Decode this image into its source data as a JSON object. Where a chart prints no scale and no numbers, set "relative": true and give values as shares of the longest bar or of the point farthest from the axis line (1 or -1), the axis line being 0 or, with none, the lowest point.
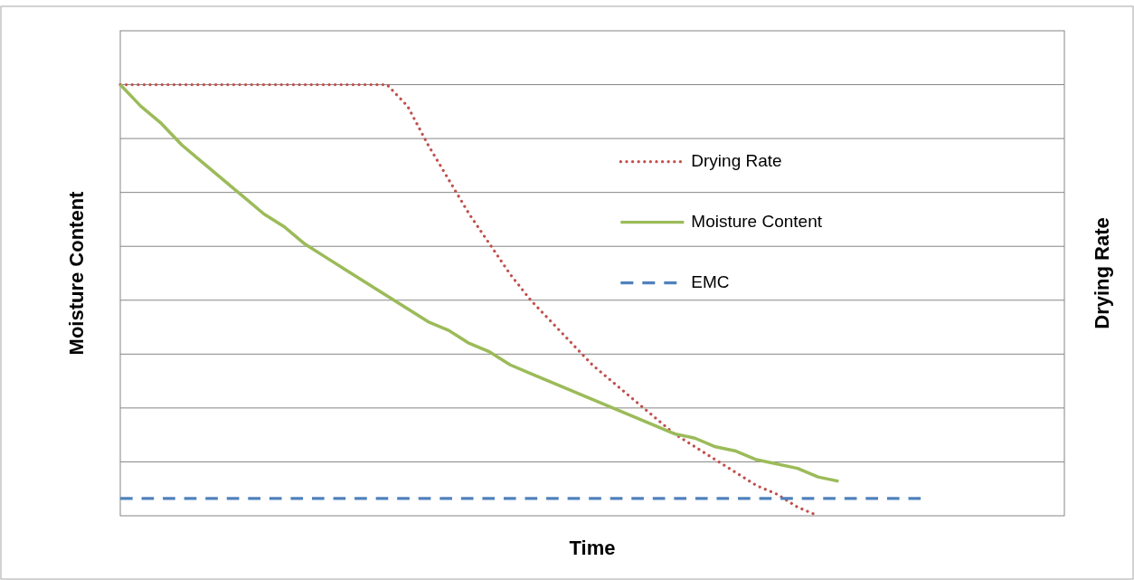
{
  "chart_data": {
    "type": "line",
    "xlabel": "Time",
    "ylabel": "Moisture Content",
    "annotations": [
      "Drying Rate"
    ],
    "relative": true,
    "grid": true,
    "legend": "right",
    "categories": [
      null,
      null,
      null,
      null,
      null,
      null,
      null,
      null,
      null,
      null,
      null,
      null,
      null,
      null,
      null,
      null,
      null,
      null,
      null,
      null,
      null,
      null,
      null,
      null,
      null,
      null,
      null,
      null,
      null,
      null,
      null,
      null,
      null,
      null,
      null,
      null,
      null,
      null,
      null,
      null
    ],
    "series": [
      {
        "name": "Drying Rate",
        "color": "#c0504d",
        "line_style": "dotted",
        "values": [
          1,
          1,
          1,
          1,
          1,
          1,
          1,
          1,
          1,
          1,
          1,
          1,
          1,
          1,
          0.95,
          0.86,
          0.78,
          0.7,
          0.63,
          0.56,
          0.5,
          0.45,
          0.4,
          0.35,
          0.31,
          0.27,
          0.23,
          0.19,
          0.16,
          0.13,
          0.1,
          0.07,
          0.05,
          0.02,
          0,
          null,
          null,
          null,
          null,
          null
        ]
      },
      {
        "name": "Moisture Content",
        "color": "#9bbb59",
        "line_style": "solid",
        "values": [
          1,
          0.95,
          0.91,
          0.86,
          0.82,
          0.78,
          0.74,
          0.7,
          0.67,
          0.63,
          0.6,
          0.57,
          0.54,
          0.51,
          0.48,
          0.45,
          0.43,
          0.4,
          0.38,
          0.35,
          0.33,
          0.31,
          0.29,
          0.27,
          0.25,
          0.23,
          0.21,
          0.19,
          0.18,
          0.16,
          0.15,
          0.13,
          0.12,
          0.11,
          0.09,
          0.08,
          null,
          null,
          null,
          null
        ]
      },
      {
        "name": "EMC",
        "color": "#4f81bd",
        "line_style": "dashed",
        "values": [
          0.04,
          0.04,
          0.04,
          0.04,
          0.04,
          0.04,
          0.04,
          0.04,
          0.04,
          0.04,
          0.04,
          0.04,
          0.04,
          0.04,
          0.04,
          0.04,
          0.04,
          0.04,
          0.04,
          0.04,
          0.04,
          0.04,
          0.04,
          0.04,
          0.04,
          0.04,
          0.04,
          0.04,
          0.04,
          0.04,
          0.04,
          0.04,
          0.04,
          0.04,
          0.04,
          0.04,
          0.04,
          0.04,
          0.04,
          0.04
        ]
      }
    ]
  }
}
